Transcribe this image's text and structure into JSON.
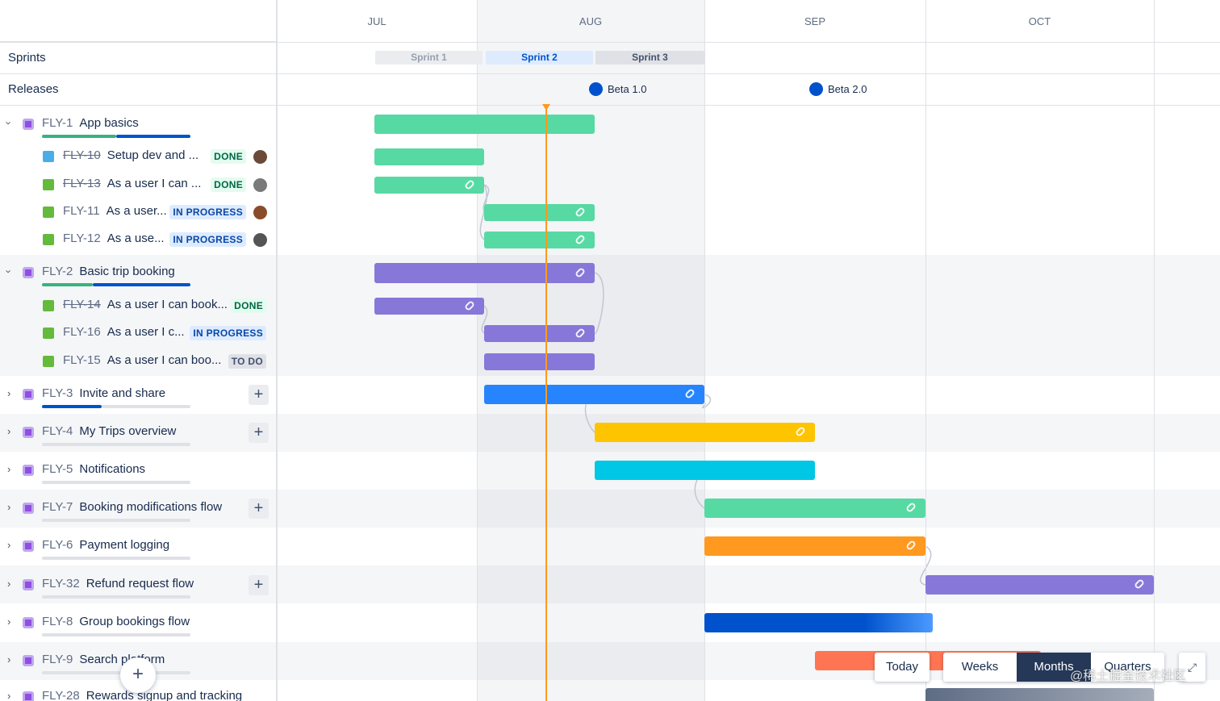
{
  "timeline": {
    "months": [
      "JUL",
      "AUG",
      "SEP",
      "OCT"
    ]
  },
  "side": {
    "sprints_label": "Sprints",
    "releases_label": "Releases"
  },
  "sprints": [
    "Sprint 1",
    "Sprint 2",
    "Sprint 3"
  ],
  "releases": [
    "Beta 1.0",
    "Beta 2.0"
  ],
  "epics": [
    {
      "key": "FLY-1",
      "title": "App basics",
      "children": [
        {
          "key": "FLY-10",
          "title": "Setup dev and ...",
          "status": "DONE"
        },
        {
          "key": "FLY-13",
          "title": "As a user I can ...",
          "status": "DONE"
        },
        {
          "key": "FLY-11",
          "title": "As a user...",
          "status": "IN PROGRESS"
        },
        {
          "key": "FLY-12",
          "title": "As a use...",
          "status": "IN PROGRESS"
        }
      ]
    },
    {
      "key": "FLY-2",
      "title": "Basic trip booking",
      "children": [
        {
          "key": "FLY-14",
          "title": "As a user I can book...",
          "status": "DONE"
        },
        {
          "key": "FLY-16",
          "title": "As a user I c...",
          "status": "IN PROGRESS"
        },
        {
          "key": "FLY-15",
          "title": "As a user I can boo...",
          "status": "TO DO"
        }
      ]
    },
    {
      "key": "FLY-3",
      "title": "Invite and share"
    },
    {
      "key": "FLY-4",
      "title": "My Trips overview"
    },
    {
      "key": "FLY-5",
      "title": "Notifications"
    },
    {
      "key": "FLY-7",
      "title": "Booking modifications flow"
    },
    {
      "key": "FLY-6",
      "title": "Payment logging"
    },
    {
      "key": "FLY-32",
      "title": "Refund request flow"
    },
    {
      "key": "FLY-8",
      "title": "Group bookings flow"
    },
    {
      "key": "FLY-9",
      "title": "Search platform"
    },
    {
      "key": "FLY-28",
      "title": "Rewards signup and tracking"
    }
  ],
  "controls": {
    "today": "Today",
    "views": [
      "Weeks",
      "Months",
      "Quarters"
    ]
  },
  "watermark": "@稀土掘金技术社区"
}
